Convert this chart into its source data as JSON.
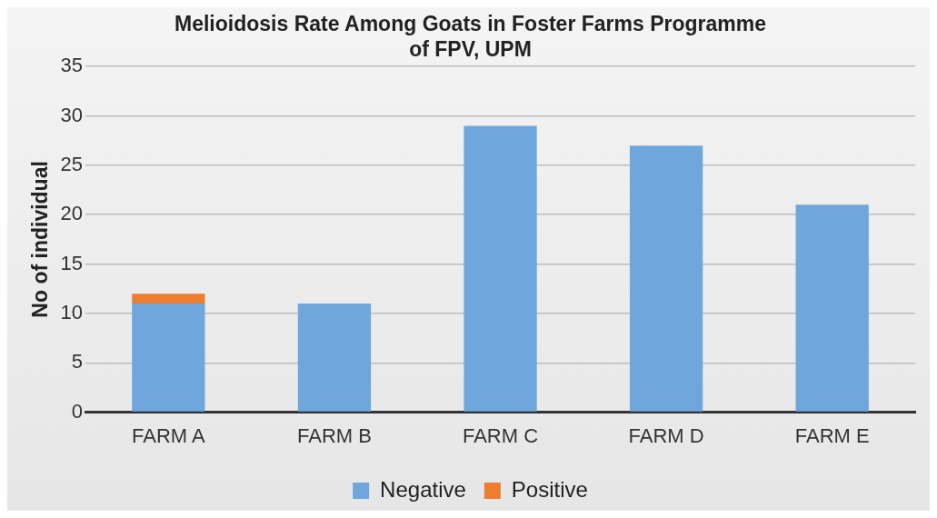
{
  "chart_data": {
    "type": "bar",
    "title": "Melioidosis Rate Among Goats in Foster Farms Programme of FPV, UPM",
    "ylabel": "No of individual",
    "categories": [
      "FARM A",
      "FARM B",
      "FARM C",
      "FARM D",
      "FARM E"
    ],
    "series": [
      {
        "name": "Negative",
        "color": "#6fa7dc",
        "values": [
          11,
          11,
          29,
          27,
          21
        ]
      },
      {
        "name": "Positive",
        "color": "#ed7d31",
        "values": [
          1,
          0,
          0,
          0,
          0
        ]
      }
    ],
    "stacked": true,
    "ylim": [
      0,
      35
    ],
    "yticks": [
      0,
      5,
      10,
      15,
      20,
      25,
      30,
      35
    ],
    "grid": "y",
    "legend": "bottom"
  }
}
